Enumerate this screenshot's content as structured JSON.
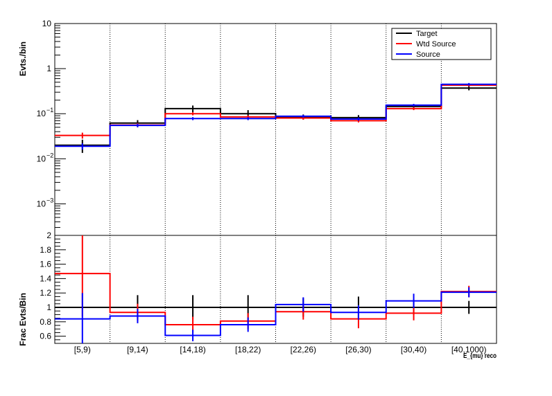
{
  "chart_data": [
    {
      "type": "step",
      "panel": "top",
      "ylabel": "Evts./bin",
      "yscale": "log",
      "ylim": [
        0.0002,
        10
      ],
      "categories": [
        "[5,9)",
        "[9,14)",
        "[14,18)",
        "[18,22)",
        "[22,26)",
        "[26,30)",
        "[30,40)",
        "[40,1000)"
      ],
      "legend": {
        "placement": "top-right"
      },
      "series": [
        {
          "name": "Target",
          "color": "#000000",
          "values": [
            0.02,
            0.062,
            0.13,
            0.1,
            0.085,
            0.082,
            0.145,
            0.37
          ],
          "errors": [
            0.0065,
            0.01,
            0.022,
            0.02,
            0.011,
            0.011,
            0.015,
            0.04
          ]
        },
        {
          "name": "Wtd Source",
          "color": "#ff0000",
          "values": [
            0.033,
            0.056,
            0.1,
            0.085,
            0.08,
            0.07,
            0.13,
            0.43
          ],
          "errors": [
            0.005,
            0.006,
            0.008,
            0.007,
            0.006,
            0.006,
            0.01,
            0.03
          ]
        },
        {
          "name": "Source",
          "color": "#0000ff",
          "values": [
            0.019,
            0.055,
            0.078,
            0.078,
            0.088,
            0.076,
            0.155,
            0.45
          ],
          "errors": [
            0.003,
            0.005,
            0.006,
            0.006,
            0.006,
            0.006,
            0.01,
            0.03
          ]
        }
      ]
    },
    {
      "type": "step",
      "panel": "bottom",
      "ylabel": "Frac Evts/Bin",
      "ylim": [
        0.5,
        2.0
      ],
      "yticks": [
        0.6,
        0.8,
        1,
        1.2,
        1.4,
        1.6,
        1.8,
        2
      ],
      "categories": [
        "[5,9)",
        "[9,14)",
        "[14,18)",
        "[18,22)",
        "[22,26)",
        "[26,30)",
        "[30,40)",
        "[40,1000)"
      ],
      "xlabel": "E_{mu} reco",
      "series": [
        {
          "name": "Target",
          "color": "#000000",
          "values": [
            1,
            1,
            1,
            1,
            1,
            1,
            1,
            1
          ],
          "errors": [
            0,
            0.17,
            0.17,
            0.17,
            0.13,
            0.15,
            0.1,
            0.09
          ]
        },
        {
          "name": "Wtd Source",
          "color": "#ff0000",
          "values": [
            1.47,
            0.93,
            0.76,
            0.81,
            0.94,
            0.84,
            0.92,
            1.22
          ],
          "errors": [
            0.6,
            0.12,
            0.11,
            0.11,
            0.11,
            0.13,
            0.1,
            0.08
          ]
        },
        {
          "name": "Source",
          "color": "#0000ff",
          "values": [
            0.84,
            0.88,
            0.61,
            0.76,
            1.04,
            0.93,
            1.09,
            1.21
          ],
          "errors": [
            0.36,
            0.1,
            0.08,
            0.1,
            0.1,
            0.1,
            0.1,
            0.07
          ]
        }
      ]
    }
  ]
}
